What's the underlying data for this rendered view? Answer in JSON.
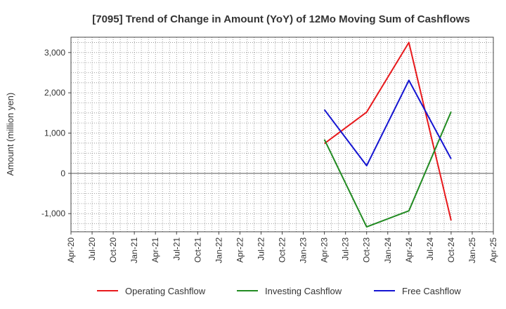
{
  "chart_data": {
    "type": "line",
    "title": "[7095]  Trend of Change in Amount (YoY) of 12Mo Moving Sum of Cashflows",
    "xlabel": "",
    "ylabel": "Amount (million yen)",
    "ylim": [
      -1450,
      3380
    ],
    "yticks": [
      -1000,
      0,
      1000,
      2000,
      3000
    ],
    "ytick_labels": [
      "-1,000",
      "0",
      "1,000",
      "2,000",
      "3,000"
    ],
    "x_labels": [
      "Apr-20",
      "Jul-20",
      "Oct-20",
      "Jan-21",
      "Apr-21",
      "Jul-21",
      "Oct-21",
      "Jan-22",
      "Apr-22",
      "Jul-22",
      "Oct-22",
      "Jan-23",
      "Apr-23",
      "Jul-23",
      "Oct-23",
      "Jan-24",
      "Apr-24",
      "Jul-24",
      "Oct-24",
      "Jan-25",
      "Apr-25"
    ],
    "grid": true,
    "legend_position": "bottom",
    "series": [
      {
        "name": "Operating Cashflow",
        "color": "#e8191c",
        "x": [
          "Apr-23",
          "Oct-23",
          "Apr-24",
          "Oct-24"
        ],
        "values": [
          740,
          1520,
          3250,
          -1170
        ]
      },
      {
        "name": "Investing Cashflow",
        "color": "#228b22",
        "x": [
          "Apr-23",
          "Oct-23",
          "Apr-24",
          "Oct-24"
        ],
        "values": [
          840,
          -1330,
          -930,
          1530
        ]
      },
      {
        "name": "Free Cashflow",
        "color": "#1414d2",
        "x": [
          "Apr-23",
          "Oct-23",
          "Apr-24",
          "Oct-24"
        ],
        "values": [
          1580,
          190,
          2310,
          360
        ]
      }
    ]
  }
}
